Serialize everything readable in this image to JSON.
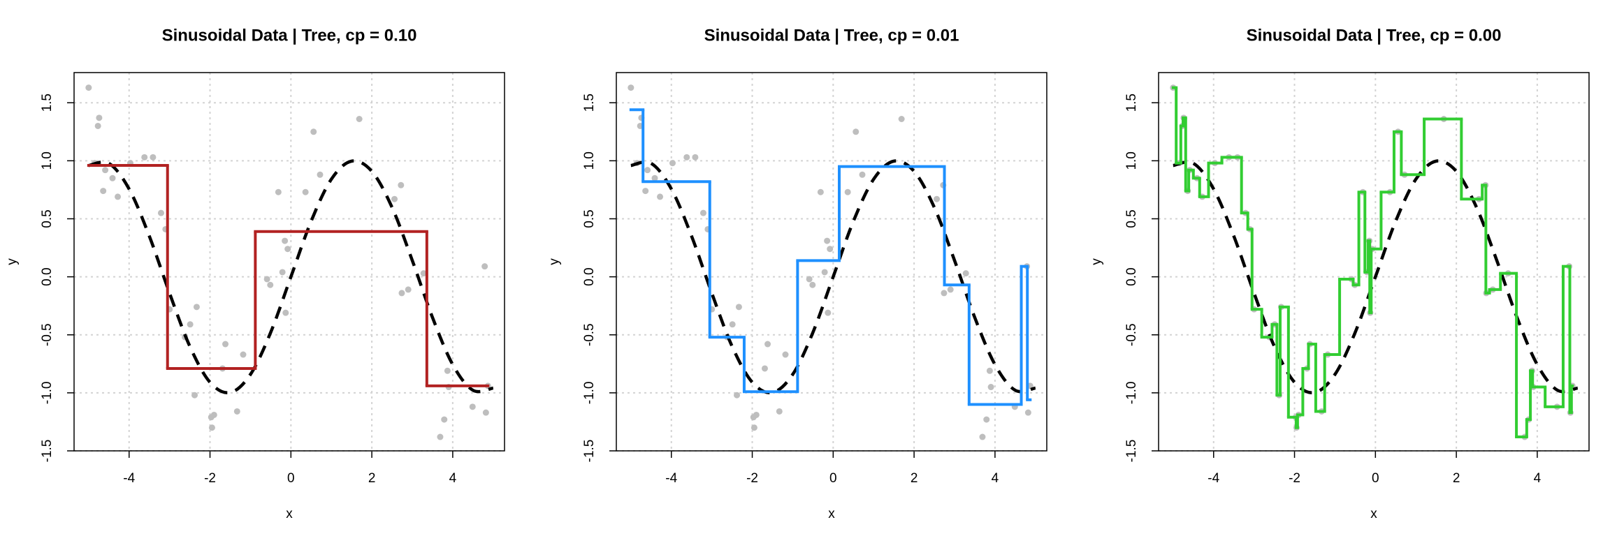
{
  "chart_data": [
    {
      "type": "scatter",
      "title": "Sinusoidal Data | Tree, cp = 0.10",
      "x_label": "x",
      "y_label": "y",
      "xlim": [
        -5.36,
        5.28
      ],
      "ylim": [
        -1.5,
        1.76
      ],
      "grid": true,
      "xticks": [
        -4,
        -2,
        0,
        2,
        4
      ],
      "yticks": [
        -1.5,
        {
          "value": -1,
          "label": "-1.0"
        },
        -0.5,
        {
          "value": 0,
          "label": "0.0"
        },
        0.5,
        {
          "value": 1,
          "label": "1.0"
        },
        1.5
      ],
      "points": {
        "color": "#bebebe",
        "x": [
          -5.0,
          -4.85,
          -4.77,
          -4.74,
          -4.64,
          -4.59,
          -4.41,
          -4.28,
          -3.97,
          -3.62,
          -3.41,
          -3.21,
          -3.1,
          -3.0,
          -2.62,
          -2.49,
          -2.38,
          -2.33,
          -1.97,
          -1.95,
          -1.9,
          -1.69,
          -1.62,
          -1.33,
          -1.18,
          -0.59,
          -0.51,
          -0.31,
          -0.21,
          -0.15,
          -0.13,
          -0.08,
          0.36,
          0.56,
          0.72,
          1.69,
          2.56,
          2.72,
          2.74,
          2.9,
          3.28,
          3.69,
          3.79,
          3.87,
          3.9,
          4.49,
          4.79,
          4.82,
          4.87
        ],
        "values": [
          1.63,
          0.98,
          1.3,
          1.37,
          0.74,
          0.92,
          0.85,
          0.69,
          0.98,
          1.03,
          1.03,
          0.55,
          0.41,
          -0.28,
          -0.52,
          -0.41,
          -1.02,
          -0.26,
          -1.21,
          -1.3,
          -1.19,
          -0.79,
          -0.58,
          -1.16,
          -0.67,
          -0.02,
          -0.07,
          0.73,
          0.04,
          0.31,
          -0.31,
          0.24,
          0.73,
          1.25,
          0.88,
          1.36,
          0.67,
          0.79,
          -0.14,
          -0.11,
          0.03,
          -1.38,
          -1.23,
          -0.81,
          -0.95,
          -1.12,
          0.09,
          -1.17,
          -0.94
        ]
      },
      "curve": {
        "color": "#000000",
        "x": [
          -5,
          -4.5,
          -4,
          -3.5,
          -3,
          -2.5,
          -2,
          -1.5,
          -1,
          -0.5,
          0,
          0.5,
          1,
          1.5,
          2,
          2.5,
          3,
          3.5,
          4,
          4.5,
          5
        ],
        "values": [
          0.959,
          0.978,
          0.757,
          0.351,
          -0.141,
          -0.598,
          -0.909,
          -0.997,
          -0.841,
          -0.479,
          0,
          0.479,
          0.841,
          0.997,
          0.909,
          0.598,
          0.141,
          -0.351,
          -0.757,
          -0.978,
          -0.959
        ]
      },
      "steps": {
        "color": "#b22222",
        "breaks": [
          -5.0,
          -3.05,
          -0.88,
          3.36,
          4.87
        ],
        "values": [
          0.96,
          -0.79,
          0.39,
          -0.94
        ]
      }
    },
    {
      "type": "scatter",
      "title": "Sinusoidal Data | Tree, cp = 0.01",
      "x_label": "x",
      "y_label": "y",
      "xlim": [
        -5.36,
        5.28
      ],
      "ylim": [
        -1.5,
        1.76
      ],
      "grid": true,
      "xticks": [
        -4,
        -2,
        0,
        2,
        4
      ],
      "yticks": [
        -1.5,
        {
          "value": -1,
          "label": "-1.0"
        },
        -0.5,
        {
          "value": 0,
          "label": "0.0"
        },
        0.5,
        {
          "value": 1,
          "label": "1.0"
        },
        1.5
      ],
      "points": {
        "color": "#bebebe",
        "x": [
          -5.0,
          -4.85,
          -4.77,
          -4.74,
          -4.64,
          -4.59,
          -4.41,
          -4.28,
          -3.97,
          -3.62,
          -3.41,
          -3.21,
          -3.1,
          -3.0,
          -2.62,
          -2.49,
          -2.38,
          -2.33,
          -1.97,
          -1.95,
          -1.9,
          -1.69,
          -1.62,
          -1.33,
          -1.18,
          -0.59,
          -0.51,
          -0.31,
          -0.21,
          -0.15,
          -0.13,
          -0.08,
          0.36,
          0.56,
          0.72,
          1.69,
          2.56,
          2.72,
          2.74,
          2.9,
          3.28,
          3.69,
          3.79,
          3.87,
          3.9,
          4.49,
          4.79,
          4.82,
          4.87
        ],
        "values": [
          1.63,
          0.98,
          1.3,
          1.37,
          0.74,
          0.92,
          0.85,
          0.69,
          0.98,
          1.03,
          1.03,
          0.55,
          0.41,
          -0.28,
          -0.52,
          -0.41,
          -1.02,
          -0.26,
          -1.21,
          -1.3,
          -1.19,
          -0.79,
          -0.58,
          -1.16,
          -0.67,
          -0.02,
          -0.07,
          0.73,
          0.04,
          0.31,
          -0.31,
          0.24,
          0.73,
          1.25,
          0.88,
          1.36,
          0.67,
          0.79,
          -0.14,
          -0.11,
          0.03,
          -1.38,
          -1.23,
          -0.81,
          -0.95,
          -1.12,
          0.09,
          -1.17,
          -0.94
        ]
      },
      "curve": {
        "color": "#000000",
        "x": [
          -5,
          -4.5,
          -4,
          -3.5,
          -3,
          -2.5,
          -2,
          -1.5,
          -1,
          -0.5,
          0,
          0.5,
          1,
          1.5,
          2,
          2.5,
          3,
          3.5,
          4,
          4.5,
          5
        ],
        "values": [
          0.959,
          0.978,
          0.757,
          0.351,
          -0.141,
          -0.598,
          -0.909,
          -0.997,
          -0.841,
          -0.479,
          0,
          0.479,
          0.841,
          0.997,
          0.909,
          0.598,
          0.141,
          -0.351,
          -0.757,
          -0.978,
          -0.959
        ]
      },
      "steps": {
        "color": "#1e90ff",
        "breaks": [
          -5.0,
          -4.7,
          -3.05,
          -2.2,
          -0.88,
          0.15,
          2.75,
          3.36,
          4.65,
          4.8,
          4.87
        ],
        "values": [
          1.44,
          0.82,
          -0.52,
          -0.99,
          0.14,
          0.95,
          -0.07,
          -1.1,
          0.09,
          -1.06
        ]
      }
    },
    {
      "type": "scatter",
      "title": "Sinusoidal Data | Tree, cp = 0.00",
      "x_label": "x",
      "y_label": "y",
      "xlim": [
        -5.36,
        5.28
      ],
      "ylim": [
        -1.5,
        1.76
      ],
      "grid": true,
      "xticks": [
        -4,
        -2,
        0,
        2,
        4
      ],
      "yticks": [
        -1.5,
        {
          "value": -1,
          "label": "-1.0"
        },
        -0.5,
        {
          "value": 0,
          "label": "0.0"
        },
        0.5,
        {
          "value": 1,
          "label": "1.0"
        },
        1.5
      ],
      "points": {
        "color": "#bebebe",
        "x": [
          -5.0,
          -4.85,
          -4.77,
          -4.74,
          -4.64,
          -4.59,
          -4.41,
          -4.28,
          -3.97,
          -3.62,
          -3.41,
          -3.21,
          -3.1,
          -3.0,
          -2.62,
          -2.49,
          -2.38,
          -2.33,
          -1.97,
          -1.95,
          -1.9,
          -1.69,
          -1.62,
          -1.33,
          -1.18,
          -0.59,
          -0.51,
          -0.31,
          -0.21,
          -0.15,
          -0.13,
          -0.08,
          0.36,
          0.56,
          0.72,
          1.69,
          2.56,
          2.72,
          2.74,
          2.9,
          3.28,
          3.69,
          3.79,
          3.87,
          3.9,
          4.49,
          4.79,
          4.82,
          4.87
        ],
        "values": [
          1.63,
          0.98,
          1.3,
          1.37,
          0.74,
          0.92,
          0.85,
          0.69,
          0.98,
          1.03,
          1.03,
          0.55,
          0.41,
          -0.28,
          -0.52,
          -0.41,
          -1.02,
          -0.26,
          -1.21,
          -1.3,
          -1.19,
          -0.79,
          -0.58,
          -1.16,
          -0.67,
          -0.02,
          -0.07,
          0.73,
          0.04,
          0.31,
          -0.31,
          0.24,
          0.73,
          1.25,
          0.88,
          1.36,
          0.67,
          0.79,
          -0.14,
          -0.11,
          0.03,
          -1.38,
          -1.23,
          -0.81,
          -0.95,
          -1.12,
          0.09,
          -1.17,
          -0.94
        ]
      },
      "curve": {
        "color": "#000000",
        "x": [
          -5,
          -4.5,
          -4,
          -3.5,
          -3,
          -2.5,
          -2,
          -1.5,
          -1,
          -0.5,
          0,
          0.5,
          1,
          1.5,
          2,
          2.5,
          3,
          3.5,
          4,
          4.5,
          5
        ],
        "values": [
          0.959,
          0.978,
          0.757,
          0.351,
          -0.141,
          -0.598,
          -0.909,
          -0.997,
          -0.841,
          -0.479,
          0,
          0.479,
          0.841,
          0.997,
          0.909,
          0.598,
          0.141,
          -0.351,
          -0.757,
          -0.978,
          -0.959
        ]
      },
      "steps": {
        "color": "#32cd32",
        "x": [
          -5.0,
          -4.85,
          -4.77,
          -4.74,
          -4.64,
          -4.59,
          -4.41,
          -4.28,
          -3.97,
          -3.62,
          -3.41,
          -3.21,
          -3.1,
          -3.0,
          -2.62,
          -2.49,
          -2.38,
          -2.33,
          -1.97,
          -1.95,
          -1.9,
          -1.69,
          -1.62,
          -1.33,
          -1.18,
          -0.59,
          -0.51,
          -0.31,
          -0.21,
          -0.15,
          -0.13,
          -0.08,
          0.36,
          0.56,
          0.72,
          1.69,
          2.56,
          2.72,
          2.74,
          2.9,
          3.28,
          3.69,
          3.79,
          3.87,
          3.9,
          4.49,
          4.79,
          4.82,
          4.87
        ],
        "values": [
          1.63,
          0.98,
          1.3,
          1.37,
          0.74,
          0.92,
          0.85,
          0.69,
          0.98,
          1.03,
          1.03,
          0.55,
          0.41,
          -0.28,
          -0.52,
          -0.41,
          -1.02,
          -0.26,
          -1.21,
          -1.3,
          -1.19,
          -0.79,
          -0.58,
          -1.16,
          -0.67,
          -0.02,
          -0.07,
          0.73,
          0.04,
          0.31,
          -0.31,
          0.24,
          0.73,
          1.25,
          0.88,
          1.36,
          0.67,
          0.79,
          -0.14,
          -0.11,
          0.03,
          -1.38,
          -1.23,
          -0.81,
          -0.95,
          -1.12,
          0.09,
          -1.17,
          -0.94
        ]
      }
    }
  ]
}
